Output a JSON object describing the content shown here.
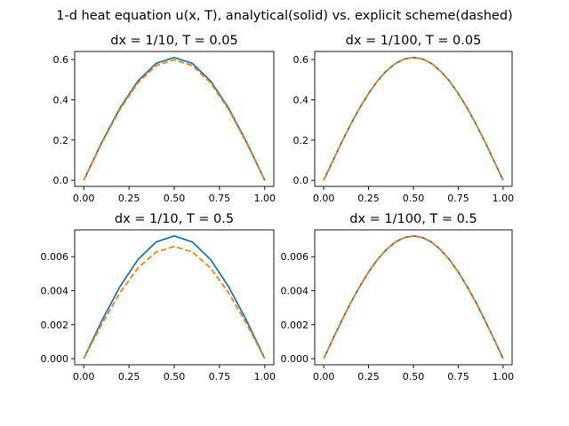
{
  "figure": {
    "suptitle": "1-d heat equation u(x, T), analytical(solid) vs. explicit scheme(dashed)"
  },
  "colors": {
    "analytical": "#1f77b4",
    "explicit": "#ff7f0e",
    "axes": "#000000",
    "background": "#ffffff"
  },
  "chart_data": [
    {
      "type": "line",
      "title": "dx = 1/10,  T = 0.05",
      "xlabel": "",
      "ylabel": "",
      "xlim": [
        -0.05,
        1.05
      ],
      "ylim": [
        -0.03,
        0.64
      ],
      "xticks": [
        0.0,
        0.25,
        0.5,
        0.75,
        1.0
      ],
      "xtick_labels": [
        "0.00",
        "0.25",
        "0.50",
        "0.75",
        "1.00"
      ],
      "yticks": [
        0.0,
        0.2,
        0.4,
        0.6
      ],
      "ytick_labels": [
        "0.0",
        "0.2",
        "0.4",
        "0.6"
      ],
      "grid": false,
      "series": [
        {
          "style": "solid",
          "x": [
            0.0,
            0.1,
            0.2,
            0.3,
            0.4,
            0.5,
            0.6,
            0.7,
            0.8,
            0.9,
            1.0
          ],
          "y": [
            0.0,
            0.189,
            0.359,
            0.494,
            0.581,
            0.61,
            0.581,
            0.494,
            0.359,
            0.189,
            0.0
          ]
        },
        {
          "style": "dashed",
          "x": [
            0.0,
            0.1,
            0.2,
            0.3,
            0.4,
            0.5,
            0.6,
            0.7,
            0.8,
            0.9,
            1.0
          ],
          "y": [
            0.0,
            0.185,
            0.352,
            0.485,
            0.57,
            0.599,
            0.57,
            0.485,
            0.352,
            0.185,
            0.0
          ]
        }
      ]
    },
    {
      "type": "line",
      "title": "dx = 1/100,  T = 0.05",
      "xlabel": "",
      "ylabel": "",
      "xlim": [
        -0.05,
        1.05
      ],
      "ylim": [
        -0.03,
        0.64
      ],
      "xticks": [
        0.0,
        0.25,
        0.5,
        0.75,
        1.0
      ],
      "xtick_labels": [
        "0.00",
        "0.25",
        "0.50",
        "0.75",
        "1.00"
      ],
      "yticks": [
        0.0,
        0.2,
        0.4,
        0.6
      ],
      "ytick_labels": [
        "0.0",
        "0.2",
        "0.4",
        "0.6"
      ],
      "grid": false,
      "series": [
        {
          "style": "solid",
          "x": [
            0.0,
            0.05,
            0.1,
            0.15,
            0.2,
            0.25,
            0.3,
            0.35,
            0.4,
            0.45,
            0.5,
            0.55,
            0.6,
            0.65,
            0.7,
            0.75,
            0.8,
            0.85,
            0.9,
            0.95,
            1.0
          ],
          "y": [
            0.0,
            0.095,
            0.189,
            0.277,
            0.359,
            0.431,
            0.494,
            0.544,
            0.581,
            0.603,
            0.61,
            0.603,
            0.581,
            0.544,
            0.494,
            0.431,
            0.359,
            0.277,
            0.189,
            0.095,
            0.0
          ]
        },
        {
          "style": "dashed",
          "x": [
            0.0,
            0.05,
            0.1,
            0.15,
            0.2,
            0.25,
            0.3,
            0.35,
            0.4,
            0.45,
            0.5,
            0.55,
            0.6,
            0.65,
            0.7,
            0.75,
            0.8,
            0.85,
            0.9,
            0.95,
            1.0
          ],
          "y": [
            0.0,
            0.095,
            0.189,
            0.277,
            0.359,
            0.431,
            0.494,
            0.544,
            0.581,
            0.603,
            0.61,
            0.603,
            0.581,
            0.544,
            0.494,
            0.431,
            0.359,
            0.277,
            0.189,
            0.095,
            0.0
          ]
        }
      ]
    },
    {
      "type": "line",
      "title": "dx = 1/10,  T = 0.5",
      "xlabel": "",
      "ylabel": "",
      "xlim": [
        -0.05,
        1.05
      ],
      "ylim": [
        -0.00036,
        0.00758
      ],
      "xticks": [
        0.0,
        0.25,
        0.5,
        0.75,
        1.0
      ],
      "xtick_labels": [
        "0.00",
        "0.25",
        "0.50",
        "0.75",
        "1.00"
      ],
      "yticks": [
        0.0,
        0.002,
        0.004,
        0.006
      ],
      "ytick_labels": [
        "0.000",
        "0.002",
        "0.004",
        "0.006"
      ],
      "grid": false,
      "series": [
        {
          "style": "solid",
          "x": [
            0.0,
            0.1,
            0.2,
            0.3,
            0.4,
            0.5,
            0.6,
            0.7,
            0.8,
            0.9,
            1.0
          ],
          "y": [
            0.0,
            0.00223,
            0.00424,
            0.00584,
            0.00687,
            0.00722,
            0.00687,
            0.00584,
            0.00424,
            0.00223,
            0.0
          ]
        },
        {
          "style": "dashed",
          "x": [
            0.0,
            0.1,
            0.2,
            0.3,
            0.4,
            0.5,
            0.6,
            0.7,
            0.8,
            0.9,
            1.0
          ],
          "y": [
            0.0,
            0.00204,
            0.00388,
            0.00534,
            0.00628,
            0.0066,
            0.00628,
            0.00534,
            0.00388,
            0.00204,
            0.0
          ]
        }
      ]
    },
    {
      "type": "line",
      "title": "dx = 1/100,  T = 0.5",
      "xlabel": "",
      "ylabel": "",
      "xlim": [
        -0.05,
        1.05
      ],
      "ylim": [
        -0.00036,
        0.00758
      ],
      "xticks": [
        0.0,
        0.25,
        0.5,
        0.75,
        1.0
      ],
      "xtick_labels": [
        "0.00",
        "0.25",
        "0.50",
        "0.75",
        "1.00"
      ],
      "yticks": [
        0.0,
        0.002,
        0.004,
        0.006
      ],
      "ytick_labels": [
        "0.000",
        "0.002",
        "0.004",
        "0.006"
      ],
      "grid": false,
      "series": [
        {
          "style": "solid",
          "x": [
            0.0,
            0.05,
            0.1,
            0.15,
            0.2,
            0.25,
            0.3,
            0.35,
            0.4,
            0.45,
            0.5,
            0.55,
            0.6,
            0.65,
            0.7,
            0.75,
            0.8,
            0.85,
            0.9,
            0.95,
            1.0
          ],
          "y": [
            0.0,
            0.00113,
            0.00223,
            0.00328,
            0.00424,
            0.0051,
            0.00584,
            0.00643,
            0.00687,
            0.00713,
            0.00722,
            0.00713,
            0.00687,
            0.00643,
            0.00584,
            0.0051,
            0.00424,
            0.00328,
            0.00223,
            0.00113,
            0.0
          ]
        },
        {
          "style": "dashed",
          "x": [
            0.0,
            0.05,
            0.1,
            0.15,
            0.2,
            0.25,
            0.3,
            0.35,
            0.4,
            0.45,
            0.5,
            0.55,
            0.6,
            0.65,
            0.7,
            0.75,
            0.8,
            0.85,
            0.9,
            0.95,
            1.0
          ],
          "y": [
            0.0,
            0.00113,
            0.00223,
            0.00327,
            0.00423,
            0.00509,
            0.00583,
            0.00642,
            0.00686,
            0.00712,
            0.00721,
            0.00712,
            0.00686,
            0.00642,
            0.00583,
            0.00509,
            0.00423,
            0.00327,
            0.00223,
            0.00113,
            0.0
          ]
        }
      ]
    }
  ]
}
